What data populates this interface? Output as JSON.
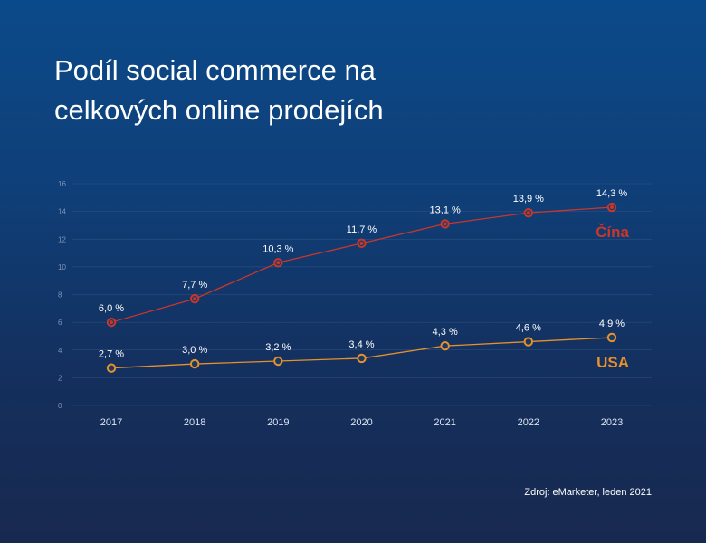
{
  "title_line1": "Podíl social commerce na",
  "title_line2": "celkových online prodejích",
  "source": "Zdroj: eMarketer, leden 2021",
  "chart_data": {
    "type": "line",
    "x": [
      "2017",
      "2018",
      "2019",
      "2020",
      "2021",
      "2022",
      "2023"
    ],
    "ylim": [
      0,
      16
    ],
    "yticks": [
      0,
      2,
      4,
      6,
      8,
      10,
      12,
      14,
      16
    ],
    "grid": true,
    "series": [
      {
        "name": "Čína",
        "color": "#c9362b",
        "values": [
          6.0,
          7.7,
          10.3,
          11.7,
          13.1,
          13.9,
          14.3
        ],
        "labels": [
          "6,0 %",
          "7,7 %",
          "10,3 %",
          "11,7 %",
          "13,1 %",
          "13,9 %",
          "14,3 %"
        ]
      },
      {
        "name": "USA",
        "color": "#e8902a",
        "values": [
          2.7,
          3.0,
          3.2,
          3.4,
          4.3,
          4.6,
          4.9
        ],
        "labels": [
          "2,7 %",
          "3,0 %",
          "3,2 %",
          "3,4 %",
          "4,3 %",
          "4,6 %",
          "4,9 %"
        ]
      }
    ]
  }
}
